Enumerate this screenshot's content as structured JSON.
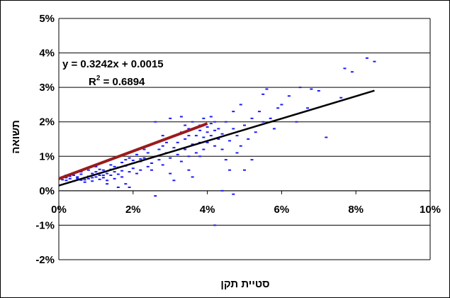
{
  "chart_data": {
    "type": "scatter",
    "xlabel": "סטיית תקן",
    "ylabel": "תשואה",
    "xlim": [
      0,
      0.1
    ],
    "ylim": [
      -0.02,
      0.05
    ],
    "x_ticks": [
      "0%",
      "2%",
      "4%",
      "6%",
      "8%",
      "10%"
    ],
    "y_ticks": [
      "-2%",
      "-1%",
      "0%",
      "1%",
      "2%",
      "3%",
      "4%",
      "5%"
    ],
    "grid": "horizontal",
    "annotation": {
      "equation": "y = 0.3242x + 0.0015",
      "r2_prefix": "R",
      "r2_exp": "2",
      "r2_value": " = 0.6894"
    },
    "colors": {
      "points": "#1a1aff",
      "trendline": "#000000",
      "red_line": "#9b1b1b",
      "grid": "#000000"
    },
    "trendline": {
      "slope": 0.3242,
      "intercept": 0.0015,
      "x_range": [
        0.0,
        0.085
      ]
    },
    "red_line": {
      "points": [
        [
          0.0,
          0.0035
        ],
        [
          0.04,
          0.0195
        ]
      ]
    },
    "points": [
      [
        0.001,
        0.0032
      ],
      [
        0.002,
        0.0038
      ],
      [
        0.002,
        0.003
      ],
      [
        0.003,
        0.0042
      ],
      [
        0.003,
        0.0035
      ],
      [
        0.004,
        0.0028
      ],
      [
        0.004,
        0.0045
      ],
      [
        0.005,
        0.0036
      ],
      [
        0.005,
        0.004
      ],
      [
        0.006,
        0.0031
      ],
      [
        0.006,
        0.0048
      ],
      [
        0.007,
        0.0038
      ],
      [
        0.007,
        0.0025
      ],
      [
        0.008,
        0.0042
      ],
      [
        0.008,
        0.0035
      ],
      [
        0.009,
        0.005
      ],
      [
        0.009,
        0.0028
      ],
      [
        0.01,
        0.004
      ],
      [
        0.01,
        0.0055
      ],
      [
        0.011,
        0.0033
      ],
      [
        0.011,
        0.0045
      ],
      [
        0.012,
        0.006
      ],
      [
        0.012,
        0.0038
      ],
      [
        0.013,
        0.005
      ],
      [
        0.013,
        0.003
      ],
      [
        0.014,
        0.0062
      ],
      [
        0.014,
        0.0045
      ],
      [
        0.015,
        0.0055
      ],
      [
        0.015,
        0.0035
      ],
      [
        0.016,
        0.0068
      ],
      [
        0.016,
        0.0048
      ],
      [
        0.017,
        0.0058
      ],
      [
        0.017,
        0.004
      ],
      [
        0.018,
        0.0072
      ],
      [
        0.018,
        0.002
      ],
      [
        0.019,
        0.0055
      ],
      [
        0.019,
        0.001
      ],
      [
        0.02,
        0.0065
      ],
      [
        0.02,
        0.008
      ],
      [
        0.021,
        0.005
      ],
      [
        0.022,
        0.0085
      ],
      [
        0.022,
        0.006
      ],
      [
        0.023,
        0.0095
      ],
      [
        0.024,
        0.007
      ],
      [
        0.024,
        0.011
      ],
      [
        0.025,
        0.008
      ],
      [
        0.025,
        0.006
      ],
      [
        0.026,
        0.01
      ],
      [
        0.026,
        -0.0015
      ],
      [
        0.027,
        0.012
      ],
      [
        0.027,
        0.009
      ],
      [
        0.028,
        0.013
      ],
      [
        0.028,
        0.0075
      ],
      [
        0.029,
        0.011
      ],
      [
        0.029,
        0.014
      ],
      [
        0.03,
        0.0095
      ],
      [
        0.03,
        0.005
      ],
      [
        0.031,
        0.0125
      ],
      [
        0.031,
        0.016
      ],
      [
        0.032,
        0.0105
      ],
      [
        0.032,
        0.014
      ],
      [
        0.033,
        0.0085
      ],
      [
        0.033,
        0.017
      ],
      [
        0.034,
        0.012
      ],
      [
        0.034,
        0.015
      ],
      [
        0.035,
        0.01
      ],
      [
        0.035,
        0.018
      ],
      [
        0.035,
        0.006
      ],
      [
        0.036,
        0.0135
      ],
      [
        0.036,
        0.02
      ],
      [
        0.037,
        0.016
      ],
      [
        0.037,
        0.011
      ],
      [
        0.038,
        0.0175
      ],
      [
        0.038,
        0.014
      ],
      [
        0.038,
        0.019
      ],
      [
        0.039,
        0.0155
      ],
      [
        0.039,
        0.012
      ],
      [
        0.039,
        0.021
      ],
      [
        0.04,
        0.017
      ],
      [
        0.04,
        0.0185
      ],
      [
        0.04,
        0.014
      ],
      [
        0.041,
        0.0195
      ],
      [
        0.041,
        0.016
      ],
      [
        0.041,
        0.0215
      ],
      [
        0.042,
        0.0175
      ],
      [
        0.042,
        0.013
      ],
      [
        0.042,
        0.02
      ],
      [
        0.043,
        0.015
      ],
      [
        0.043,
        0.018
      ],
      [
        0.044,
        0.012
      ],
      [
        0.044,
        0.0165
      ],
      [
        0.045,
        0.009
      ],
      [
        0.045,
        0.02
      ],
      [
        0.046,
        0.0145
      ],
      [
        0.046,
        0.006
      ],
      [
        0.047,
        0.018
      ],
      [
        0.047,
        0.023
      ],
      [
        0.048,
        0.011
      ],
      [
        0.048,
        0.016
      ],
      [
        0.049,
        0.025
      ],
      [
        0.049,
        0.013
      ],
      [
        0.05,
        0.019
      ],
      [
        0.05,
        0.006
      ],
      [
        0.051,
        0.015
      ],
      [
        0.052,
        0.021
      ],
      [
        0.052,
        0.009
      ],
      [
        0.053,
        0.017
      ],
      [
        0.054,
        0.023
      ],
      [
        0.055,
        0.02
      ],
      [
        0.055,
        0.028
      ],
      [
        0.056,
        0.0295
      ],
      [
        0.057,
        0.021
      ],
      [
        0.058,
        0.018
      ],
      [
        0.059,
        0.024
      ],
      [
        0.06,
        0.025
      ],
      [
        0.062,
        0.0275
      ],
      [
        0.064,
        0.02
      ],
      [
        0.065,
        0.03
      ],
      [
        0.067,
        0.024
      ],
      [
        0.068,
        0.0295
      ],
      [
        0.07,
        0.029
      ],
      [
        0.072,
        0.0155
      ],
      [
        0.076,
        0.027
      ],
      [
        0.077,
        0.0355
      ],
      [
        0.079,
        0.0345
      ],
      [
        0.083,
        0.0385
      ],
      [
        0.085,
        0.0375
      ],
      [
        0.044,
        0.0
      ],
      [
        0.047,
        -0.001
      ],
      [
        0.042,
        -0.01
      ],
      [
        0.036,
        0.004
      ],
      [
        0.031,
        0.003
      ],
      [
        0.026,
        0.02
      ],
      [
        0.03,
        0.021
      ],
      [
        0.033,
        0.0215
      ],
      [
        0.038,
        0.01
      ],
      [
        0.035,
        0.016
      ],
      [
        0.034,
        0.019
      ],
      [
        0.028,
        0.016
      ],
      [
        0.024,
        0.013
      ],
      [
        0.016,
        0.001
      ],
      [
        0.013,
        0.002
      ],
      [
        0.021,
        0.0105
      ],
      [
        0.023,
        0.012
      ],
      [
        0.019,
        0.0095
      ],
      [
        0.018,
        0.009
      ],
      [
        0.015,
        0.007
      ],
      [
        0.012,
        0.0045
      ],
      [
        0.009,
        0.0038
      ],
      [
        0.007,
        0.0032
      ],
      [
        0.003,
        0.0025
      ],
      [
        0.002,
        0.0045
      ],
      [
        0.006,
        0.0055
      ],
      [
        0.008,
        0.006
      ],
      [
        0.01,
        0.007
      ],
      [
        0.011,
        0.0062
      ],
      [
        0.014,
        0.0075
      ],
      [
        0.017,
        0.0082
      ],
      [
        0.02,
        0.0088
      ],
      [
        0.022,
        0.0092
      ]
    ]
  }
}
